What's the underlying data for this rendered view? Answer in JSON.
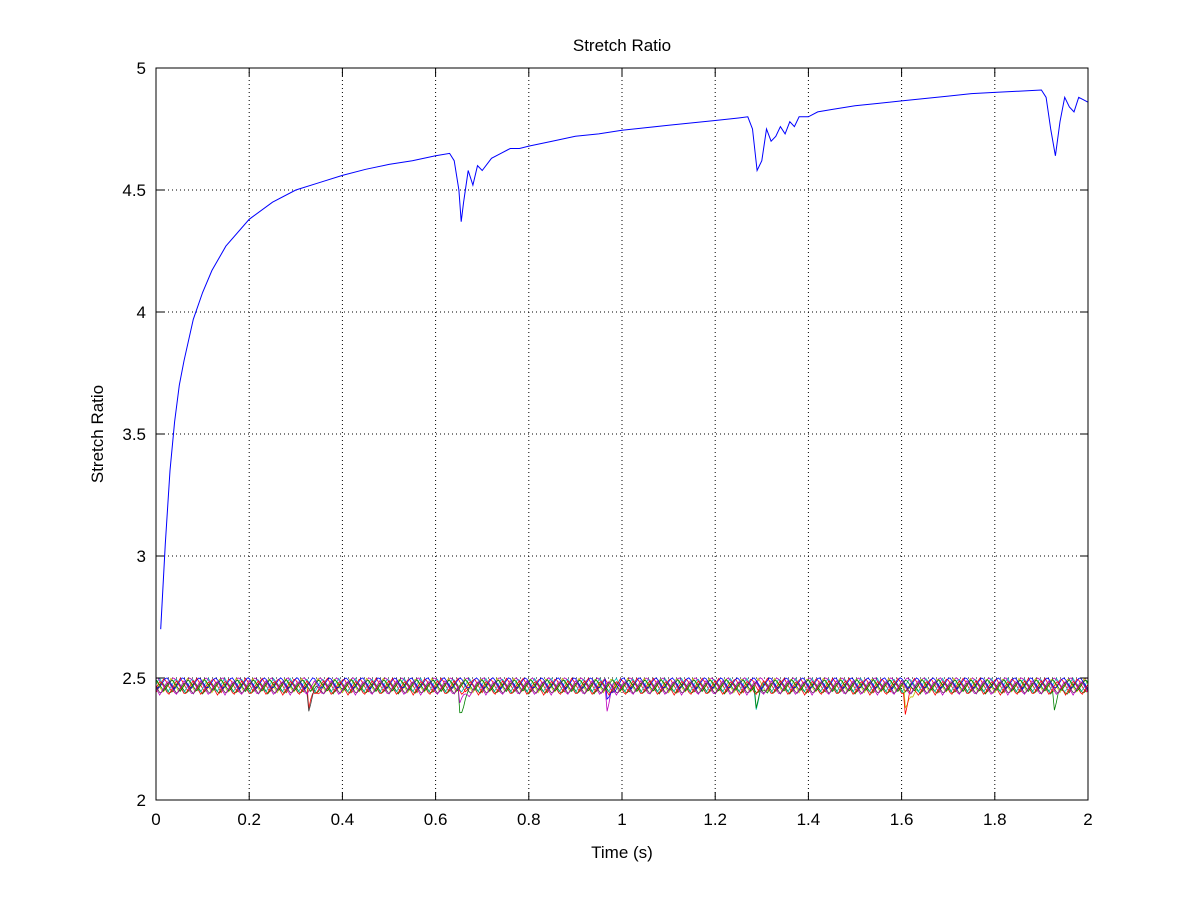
{
  "chart_data": {
    "type": "line",
    "title": "Stretch Ratio",
    "xlabel": "Time (s)",
    "ylabel": "Stretch Ratio",
    "xlim": [
      0,
      2
    ],
    "ylim": [
      2,
      5
    ],
    "xticks": [
      "0",
      "0.2",
      "0.4",
      "0.6",
      "0.8",
      "1",
      "1.2",
      "1.4",
      "1.6",
      "1.8",
      "2"
    ],
    "yticks": [
      "2",
      "2.5",
      "3",
      "3.5",
      "4",
      "4.5",
      "5"
    ],
    "grid": true,
    "legend": "none",
    "series": [
      {
        "color": "#0000ff",
        "x": [
          0.01,
          0.02,
          0.03,
          0.04,
          0.05,
          0.06,
          0.08,
          0.1,
          0.12,
          0.15,
          0.2,
          0.25,
          0.3,
          0.35,
          0.4,
          0.45,
          0.5,
          0.55,
          0.6,
          0.63,
          0.64,
          0.65,
          0.655,
          0.66,
          0.67,
          0.68,
          0.69,
          0.7,
          0.72,
          0.74,
          0.76,
          0.78,
          0.8,
          0.85,
          0.9,
          0.95,
          1.0,
          1.05,
          1.1,
          1.15,
          1.2,
          1.25,
          1.27,
          1.28,
          1.29,
          1.3,
          1.31,
          1.32,
          1.33,
          1.34,
          1.35,
          1.36,
          1.37,
          1.38,
          1.4,
          1.42,
          1.45,
          1.5,
          1.55,
          1.6,
          1.65,
          1.7,
          1.75,
          1.8,
          1.85,
          1.9,
          1.91,
          1.92,
          1.93,
          1.94,
          1.95,
          1.96,
          1.97,
          1.98,
          1.99,
          2.0
        ],
        "y": [
          2.7,
          3.05,
          3.35,
          3.55,
          3.7,
          3.8,
          3.97,
          4.08,
          4.17,
          4.27,
          4.38,
          4.45,
          4.5,
          4.53,
          4.56,
          4.585,
          4.605,
          4.62,
          4.64,
          4.65,
          4.62,
          4.5,
          4.37,
          4.45,
          4.58,
          4.52,
          4.6,
          4.58,
          4.63,
          4.65,
          4.67,
          4.67,
          4.68,
          4.7,
          4.72,
          4.73,
          4.745,
          4.755,
          4.765,
          4.775,
          4.785,
          4.795,
          4.8,
          4.75,
          4.58,
          4.62,
          4.75,
          4.7,
          4.72,
          4.76,
          4.73,
          4.78,
          4.76,
          4.8,
          4.8,
          4.82,
          4.83,
          4.845,
          4.855,
          4.865,
          4.875,
          4.885,
          4.895,
          4.9,
          4.905,
          4.91,
          4.88,
          4.75,
          4.64,
          4.78,
          4.88,
          4.84,
          4.82,
          4.88,
          4.87,
          4.86
        ]
      },
      {
        "color": "#ff0000",
        "base": 2.47,
        "amp": 0.06,
        "period": 0.035,
        "phase": 0.0,
        "dips": [
          [
            0.33,
            0.11
          ]
        ]
      },
      {
        "color": "#008000",
        "base": 2.46,
        "amp": 0.05,
        "period": 0.035,
        "phase": 0.005,
        "dips": [
          [
            0.655,
            0.1
          ],
          [
            1.93,
            0.09
          ]
        ]
      },
      {
        "color": "#00bfbf",
        "base": 2.47,
        "amp": 0.06,
        "period": 0.035,
        "phase": 0.01,
        "dips": [
          [
            1.29,
            0.08
          ]
        ]
      },
      {
        "color": "#bf00bf",
        "base": 2.48,
        "amp": 0.05,
        "period": 0.035,
        "phase": 0.015,
        "dips": [
          [
            0.97,
            0.1
          ]
        ]
      },
      {
        "color": "#bfbf00",
        "base": 2.47,
        "amp": 0.06,
        "period": 0.035,
        "phase": 0.02,
        "dips": [
          [
            1.61,
            0.12
          ]
        ]
      },
      {
        "color": "#404040",
        "base": 2.46,
        "amp": 0.05,
        "period": 0.035,
        "phase": 0.025,
        "dips": [
          [
            0.33,
            0.08
          ]
        ]
      },
      {
        "color": "#0000ff",
        "base": 2.48,
        "amp": 0.05,
        "period": 0.035,
        "phase": 0.03,
        "dips": [
          [
            0.97,
            0.09
          ]
        ]
      },
      {
        "color": "#ff0000",
        "base": 2.46,
        "amp": 0.06,
        "period": 0.035,
        "phase": 0.008,
        "dips": [
          [
            1.61,
            0.1
          ]
        ]
      },
      {
        "color": "#008000",
        "base": 2.47,
        "amp": 0.05,
        "period": 0.035,
        "phase": 0.018,
        "dips": [
          [
            1.29,
            0.1
          ]
        ]
      },
      {
        "color": "#bf00bf",
        "base": 2.46,
        "amp": 0.06,
        "period": 0.035,
        "phase": 0.027,
        "dips": [
          [
            0.655,
            0.08
          ]
        ]
      }
    ]
  }
}
